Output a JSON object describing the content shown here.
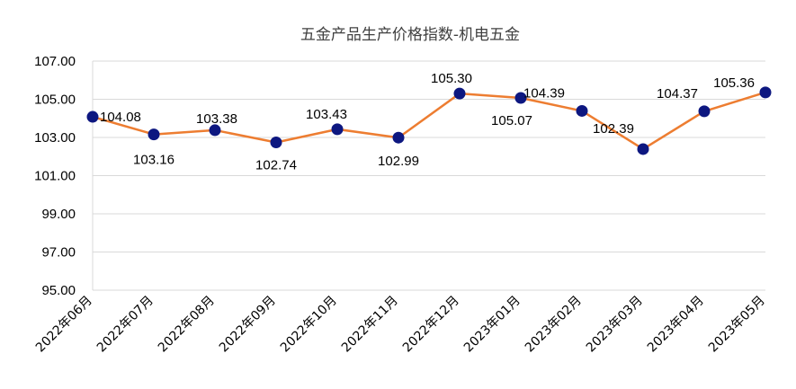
{
  "chart_data": {
    "type": "line",
    "title": "五金产品生产价格指数-机电五金",
    "categories": [
      "2022年06月",
      "2022年07月",
      "2022年08月",
      "2022年09月",
      "2022年10月",
      "2022年11月",
      "2022年12月",
      "2023年01月",
      "2023年02月",
      "2023年03月",
      "2023年04月",
      "2023年05月"
    ],
    "values": [
      104.08,
      103.16,
      103.38,
      102.74,
      103.43,
      102.99,
      105.3,
      105.07,
      104.39,
      102.39,
      104.37,
      105.36
    ],
    "value_labels": [
      "104.08",
      "103.16",
      "103.38",
      "102.74",
      "103.43",
      "102.99",
      "105.30",
      "105.07",
      "104.39",
      "102.39",
      "104.37",
      "105.36"
    ],
    "yticks": [
      "95.00",
      "97.00",
      "99.00",
      "101.00",
      "103.00",
      "105.00",
      "107.00"
    ],
    "ylim": [
      95,
      107
    ],
    "grid": true,
    "legend": "none",
    "colors": {
      "line": "#ED7D31",
      "marker": "#0D1780",
      "grid": "#D9D9D9",
      "axis": "#BFBFBF"
    }
  }
}
